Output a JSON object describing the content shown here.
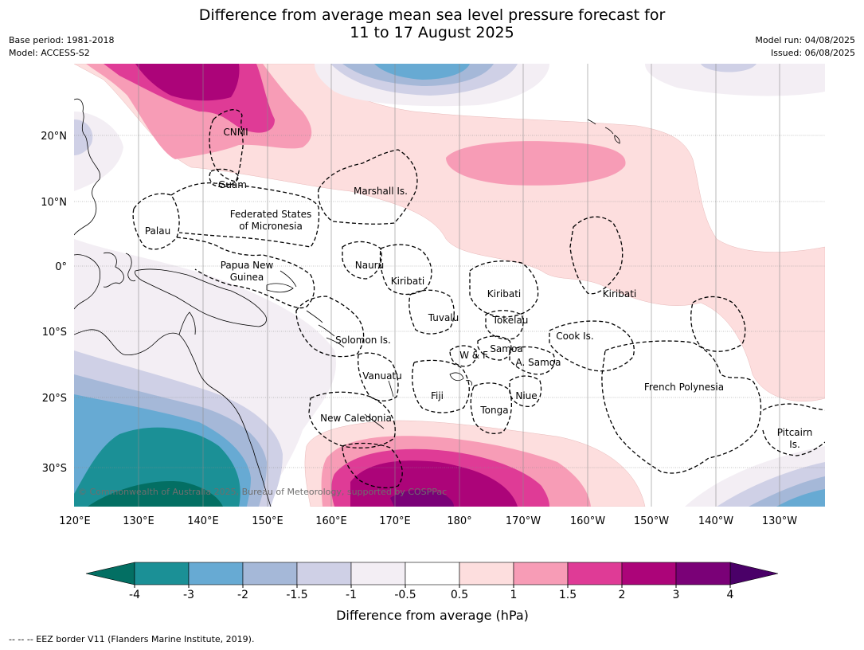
{
  "title": {
    "line1": "Difference from average mean sea level pressure forecast for",
    "line2": "11 to 17 August 2025"
  },
  "meta_left": {
    "base_period": "Base period: 1981-2018",
    "model": "Model: ACCESS-S2"
  },
  "meta_right": {
    "model_run": "Model run: 04/08/2025",
    "issued": "Issued: 06/08/2025"
  },
  "lat_labels": [
    "20°N",
    "10°N",
    "0°",
    "10°S",
    "20°S",
    "30°S"
  ],
  "lon_labels": [
    "120°E",
    "130°E",
    "140°E",
    "150°E",
    "160°E",
    "170°E",
    "180°",
    "170°W",
    "160°W",
    "150°W",
    "140°W",
    "130°W"
  ],
  "places": [
    {
      "name": "CNMI"
    },
    {
      "name": "Guam"
    },
    {
      "name": "Marshall Is."
    },
    {
      "name": "Federated States"
    },
    {
      "name": "of Micronesia"
    },
    {
      "name": "Palau"
    },
    {
      "name": "Papua New"
    },
    {
      "name": "Guinea"
    },
    {
      "name": "Nauru"
    },
    {
      "name": "Kiribati"
    },
    {
      "name": "Kiribati"
    },
    {
      "name": "Kiribati"
    },
    {
      "name": "Tuvalu"
    },
    {
      "name": "Tokelau"
    },
    {
      "name": "Solomon Is."
    },
    {
      "name": "Samoa"
    },
    {
      "name": "W & F"
    },
    {
      "name": "A. Samoa"
    },
    {
      "name": "Cook Is."
    },
    {
      "name": "Vanuatu"
    },
    {
      "name": "Fiji"
    },
    {
      "name": "Niue"
    },
    {
      "name": "Tonga"
    },
    {
      "name": "French Polynesia"
    },
    {
      "name": "New Caledonia"
    },
    {
      "name": "Pitcairn"
    },
    {
      "name": "Is."
    }
  ],
  "copyright": "© Commonwealth of Australia 2025, Bureau of Meteorology, supported by COSPPac",
  "colorbar": {
    "ticks": [
      "-4",
      "-3",
      "-2",
      "-1.5",
      "-1",
      "-0.5",
      "0.5",
      "1",
      "1.5",
      "2",
      "3",
      "4"
    ],
    "colors": [
      "#1b9096",
      "#67aad3",
      "#a5b8d8",
      "#cfd0e6",
      "#f3eef4",
      "#ffffff",
      "#fddede",
      "#f79cb6",
      "#df3b96",
      "#ac0479",
      "#7a0177"
    ],
    "under_color": "#036f63",
    "over_color": "#4a0068",
    "label": "Difference from average (hPa)"
  },
  "footnote": "--  --  -- EEZ border V11 (Flanders Marine Institute, 2019)."
}
